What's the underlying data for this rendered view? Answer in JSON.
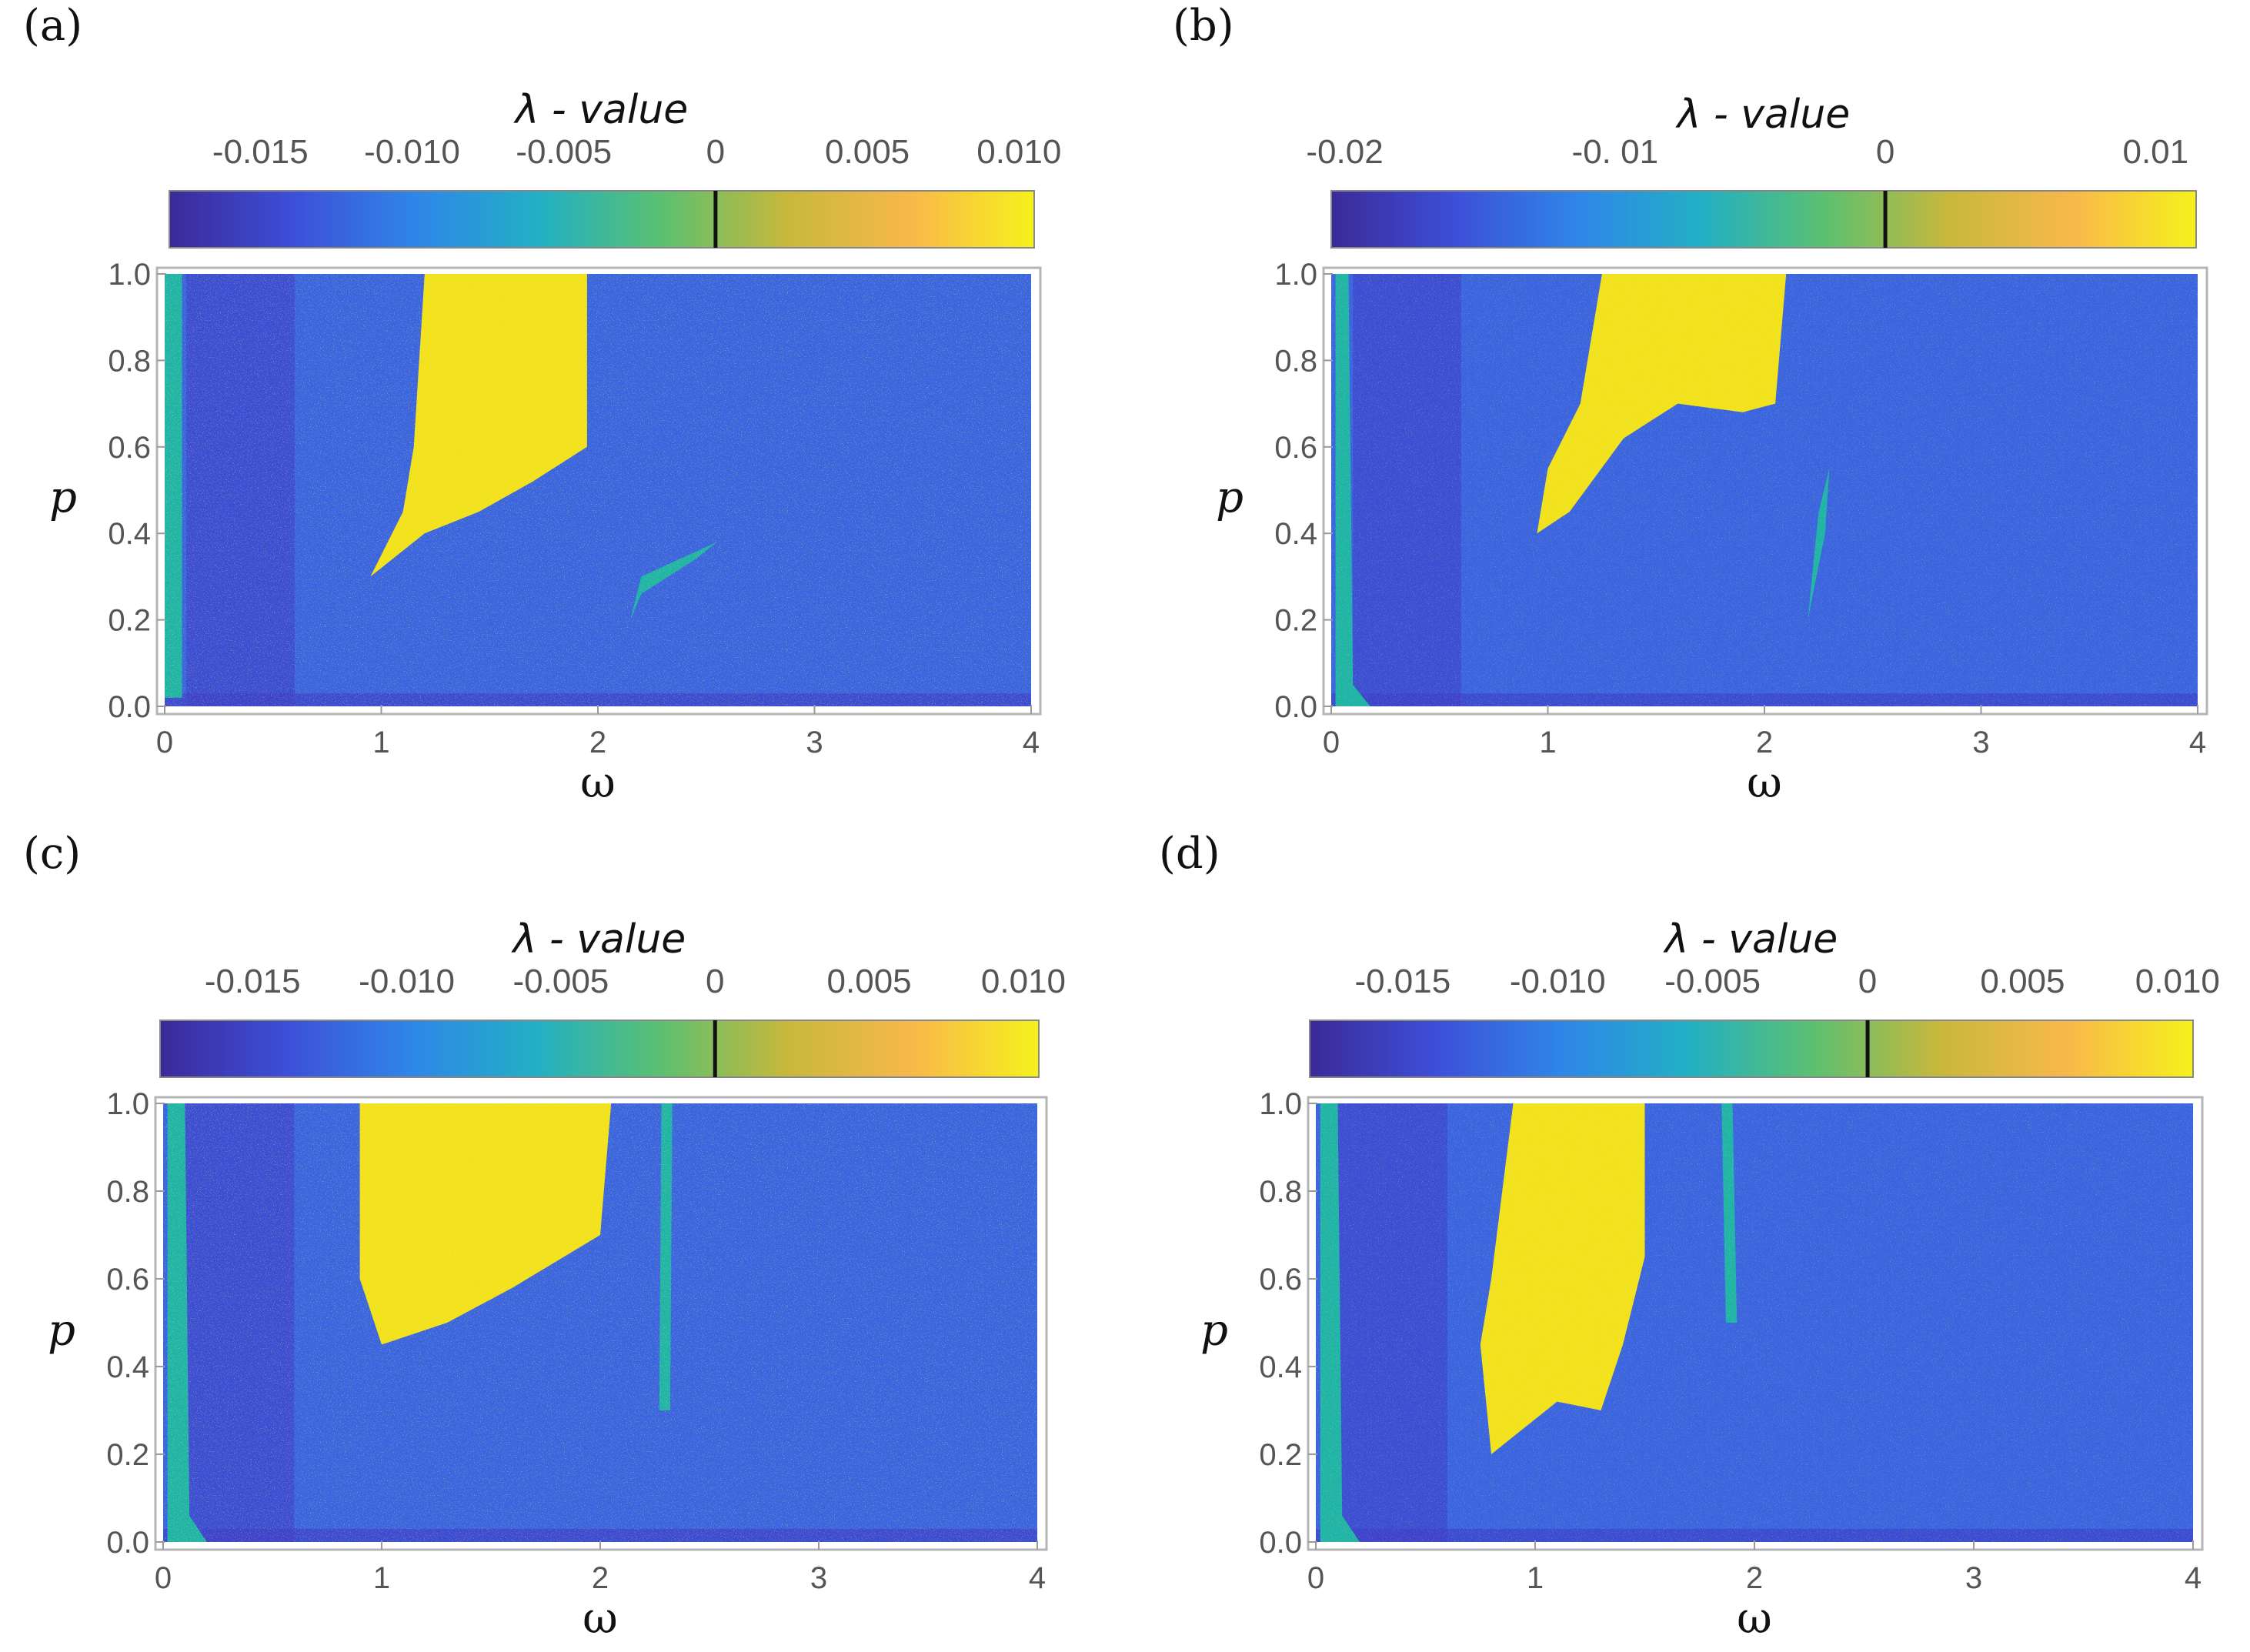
{
  "colors": {
    "background": "#3a64e0",
    "deep": "#3e3cc8",
    "chaos": "#f2e21e",
    "teal": "#20b4a8",
    "colorbar_stops": [
      "#3b2a98",
      "#3d4fd8",
      "#2f86e8",
      "#22b0c4",
      "#5cc070",
      "#c8b83c",
      "#f8b84a",
      "#f6f11c"
    ]
  },
  "panels": [
    {
      "label": "(a)",
      "letter": "a",
      "colorbar": {
        "title": "λ - value",
        "ticks": [
          "-0.015",
          "-0.010",
          "-0.005",
          "0",
          "0.005",
          "0.010"
        ],
        "tick_values": [
          -0.015,
          -0.01,
          -0.005,
          0,
          0.005,
          0.01
        ],
        "min": -0.018,
        "max": 0.0105
      },
      "yticks": [
        "1.0",
        "0.8",
        "0.6",
        "0.4",
        "0.2",
        "0.0"
      ],
      "xticks": [
        "0",
        "1",
        "2",
        "3",
        "4"
      ],
      "xlabel": "ω",
      "ylabel": "p"
    },
    {
      "label": "(b)",
      "letter": "b",
      "colorbar": {
        "title": "λ - value",
        "ticks": [
          "-0.02",
          "-0. 01",
          "0",
          "0.01"
        ],
        "tick_values": [
          -0.02,
          -0.01,
          0,
          0.01
        ],
        "min": -0.0205,
        "max": 0.0115
      },
      "yticks": [
        "1.0",
        "0.8",
        "0.6",
        "0.4",
        "0.2",
        "0.0"
      ],
      "xticks": [
        "0",
        "1",
        "2",
        "3",
        "4"
      ],
      "xlabel": "ω",
      "ylabel": "p"
    },
    {
      "label": "(c)",
      "letter": "c",
      "colorbar": {
        "title": "λ - value",
        "ticks": [
          "-0.015",
          "-0.010",
          "-0.005",
          "0",
          "0.005",
          "0.010"
        ],
        "tick_values": [
          -0.015,
          -0.01,
          -0.005,
          0,
          0.005,
          0.01
        ],
        "min": -0.018,
        "max": 0.0105
      },
      "yticks": [
        "1.0",
        "0.8",
        "0.6",
        "0.4",
        "0.2",
        "0.0"
      ],
      "xticks": [
        "0",
        "1",
        "2",
        "3",
        "4"
      ],
      "xlabel": "ω",
      "ylabel": "p"
    },
    {
      "label": "(d)",
      "letter": "d",
      "colorbar": {
        "title": "λ - value",
        "ticks": [
          "-0.015",
          "-0.010",
          "-0.005",
          "0",
          "0.005",
          "0.010"
        ],
        "tick_values": [
          -0.015,
          -0.01,
          -0.005,
          0,
          0.005,
          0.01
        ],
        "min": -0.018,
        "max": 0.0105
      },
      "yticks": [
        "1.0",
        "0.8",
        "0.6",
        "0.4",
        "0.2",
        "0.0"
      ],
      "xticks": [
        "0",
        "1",
        "2",
        "3",
        "4"
      ],
      "xlabel": "ω",
      "ylabel": "p"
    }
  ],
  "chart_data": [
    {
      "type": "heatmap",
      "title": "(a)",
      "colorbar_label": "λ - value",
      "xlabel": "ω",
      "ylabel": "p",
      "xlim": [
        0,
        4
      ],
      "ylim": [
        0,
        1
      ],
      "zlim": [
        -0.018,
        0.0105
      ],
      "zero_marker": 0,
      "regions": [
        {
          "name": "chaotic-band",
          "value": 0.01,
          "polygon": [
            [
              1.2,
              1.0
            ],
            [
              1.95,
              1.0
            ],
            [
              1.95,
              0.6
            ],
            [
              1.7,
              0.52
            ],
            [
              1.45,
              0.45
            ],
            [
              1.2,
              0.4
            ],
            [
              0.95,
              0.3
            ],
            [
              1.1,
              0.45
            ],
            [
              1.15,
              0.6
            ]
          ]
        },
        {
          "name": "teal-strip",
          "value": -0.004,
          "polygon": [
            [
              0.0,
              1.0
            ],
            [
              0.08,
              1.0
            ],
            [
              0.08,
              0.02
            ],
            [
              0.0,
              0.02
            ]
          ]
        },
        {
          "name": "teal-curve",
          "value": -0.006,
          "polygon": [
            [
              2.15,
              0.2
            ],
            [
              2.2,
              0.3
            ],
            [
              2.55,
              0.38
            ],
            [
              2.45,
              0.34
            ],
            [
              2.2,
              0.26
            ]
          ]
        }
      ]
    },
    {
      "type": "heatmap",
      "title": "(b)",
      "colorbar_label": "λ - value",
      "xlabel": "ω",
      "ylabel": "p",
      "xlim": [
        0,
        4
      ],
      "ylim": [
        0,
        1
      ],
      "zlim": [
        -0.0205,
        0.0115
      ],
      "zero_marker": 0,
      "regions": [
        {
          "name": "chaotic-band",
          "value": 0.01,
          "polygon": [
            [
              1.25,
              1.0
            ],
            [
              2.1,
              1.0
            ],
            [
              2.05,
              0.7
            ],
            [
              1.9,
              0.68
            ],
            [
              1.6,
              0.7
            ],
            [
              1.35,
              0.62
            ],
            [
              1.1,
              0.45
            ],
            [
              0.95,
              0.4
            ],
            [
              1.0,
              0.55
            ],
            [
              1.15,
              0.7
            ]
          ]
        },
        {
          "name": "teal-strip",
          "value": -0.004,
          "polygon": [
            [
              0.02,
              1.0
            ],
            [
              0.08,
              1.0
            ],
            [
              0.1,
              0.05
            ],
            [
              0.18,
              0.0
            ],
            [
              0.02,
              0.0
            ]
          ]
        },
        {
          "name": "teal-curve",
          "value": -0.006,
          "polygon": [
            [
              2.2,
              0.2
            ],
            [
              2.25,
              0.45
            ],
            [
              2.3,
              0.55
            ],
            [
              2.28,
              0.4
            ]
          ]
        }
      ]
    },
    {
      "type": "heatmap",
      "title": "(c)",
      "colorbar_label": "λ - value",
      "xlabel": "ω",
      "ylabel": "p",
      "xlim": [
        0,
        4
      ],
      "ylim": [
        0,
        1
      ],
      "zlim": [
        -0.018,
        0.0105
      ],
      "zero_marker": 0,
      "regions": [
        {
          "name": "chaotic-band",
          "value": 0.01,
          "polygon": [
            [
              0.9,
              1.0
            ],
            [
              2.05,
              1.0
            ],
            [
              2.0,
              0.7
            ],
            [
              1.6,
              0.58
            ],
            [
              1.3,
              0.5
            ],
            [
              1.0,
              0.45
            ],
            [
              0.9,
              0.6
            ]
          ]
        },
        {
          "name": "teal-strip",
          "value": -0.004,
          "polygon": [
            [
              0.02,
              1.0
            ],
            [
              0.1,
              1.0
            ],
            [
              0.12,
              0.06
            ],
            [
              0.2,
              0.0
            ],
            [
              0.02,
              0.0
            ]
          ]
        },
        {
          "name": "teal-line",
          "value": -0.006,
          "polygon": [
            [
              2.28,
              1.0
            ],
            [
              2.33,
              1.0
            ],
            [
              2.32,
              0.3
            ],
            [
              2.27,
              0.3
            ]
          ]
        }
      ]
    },
    {
      "type": "heatmap",
      "title": "(d)",
      "colorbar_label": "λ - value",
      "xlabel": "ω",
      "ylabel": "p",
      "xlim": [
        0,
        4
      ],
      "ylim": [
        0,
        1
      ],
      "zlim": [
        -0.018,
        0.0105
      ],
      "zero_marker": 0,
      "regions": [
        {
          "name": "chaotic-band",
          "value": 0.01,
          "polygon": [
            [
              0.9,
              1.0
            ],
            [
              1.5,
              1.0
            ],
            [
              1.5,
              0.65
            ],
            [
              1.4,
              0.45
            ],
            [
              1.3,
              0.3
            ],
            [
              1.1,
              0.32
            ],
            [
              0.8,
              0.2
            ],
            [
              0.75,
              0.45
            ],
            [
              0.8,
              0.6
            ]
          ]
        },
        {
          "name": "teal-strip",
          "value": -0.004,
          "polygon": [
            [
              0.02,
              1.0
            ],
            [
              0.1,
              1.0
            ],
            [
              0.12,
              0.06
            ],
            [
              0.2,
              0.0
            ],
            [
              0.02,
              0.0
            ]
          ]
        },
        {
          "name": "teal-line",
          "value": -0.006,
          "polygon": [
            [
              1.85,
              1.0
            ],
            [
              1.9,
              1.0
            ],
            [
              1.92,
              0.5
            ],
            [
              1.87,
              0.5
            ]
          ]
        }
      ]
    }
  ]
}
